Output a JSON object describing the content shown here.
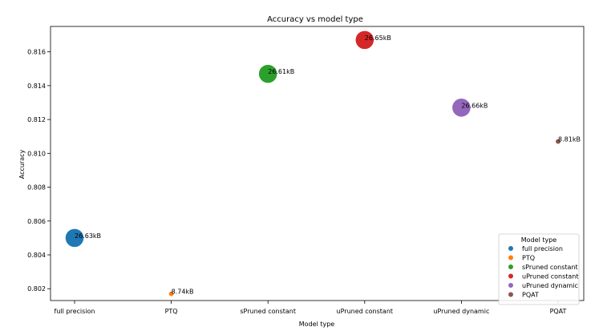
{
  "chart_data": {
    "type": "scatter",
    "title": "Accuracy vs model type",
    "xlabel": "Model type",
    "ylabel": "Accuracy",
    "categories": [
      "full precision",
      "PTQ",
      "sPruned constant",
      "uPruned constant",
      "uPruned dynamic",
      "PQAT"
    ],
    "ylim": [
      0.8013,
      0.8175
    ],
    "yticks": [
      "0.802",
      "0.804",
      "0.806",
      "0.808",
      "0.810",
      "0.812",
      "0.814",
      "0.816"
    ],
    "grid": false,
    "legend": {
      "title": "Model type",
      "placement": "bottom-right"
    },
    "series": [
      {
        "name": "full precision",
        "x": "full precision",
        "y": 0.805,
        "size_label": "26.63kB",
        "size_kb": 26.63,
        "color": "#1f77b4"
      },
      {
        "name": "PTQ",
        "x": "PTQ",
        "y": 0.8017,
        "size_label": "8.74kB",
        "size_kb": 8.74,
        "color": "#ff7f0e"
      },
      {
        "name": "sPruned constant",
        "x": "sPruned constant",
        "y": 0.8147,
        "size_label": "26.61kB",
        "size_kb": 26.61,
        "color": "#2ca02c"
      },
      {
        "name": "uPruned constant",
        "x": "uPruned constant",
        "y": 0.8167,
        "size_label": "26.65kB",
        "size_kb": 26.65,
        "color": "#d62728"
      },
      {
        "name": "uPruned dynamic",
        "x": "uPruned dynamic",
        "y": 0.8127,
        "size_label": "26.66kB",
        "size_kb": 26.66,
        "color": "#9467bd"
      },
      {
        "name": "PQAT",
        "x": "PQAT",
        "y": 0.8107,
        "size_label": "8.81kB",
        "size_kb": 8.81,
        "color": "#8c564b"
      }
    ]
  }
}
